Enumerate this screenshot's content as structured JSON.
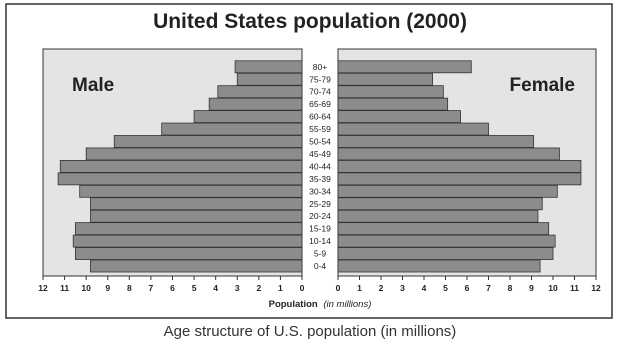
{
  "caption": "Age structure of U.S. population (in millions)",
  "colors": {
    "panel_bg": "#e4e4e4",
    "bar_fill": "#8c8c8c",
    "bar_stroke": "#333333",
    "frame": "#333333"
  },
  "chart_data": {
    "type": "bar",
    "orientation": "horizontal",
    "layout": "population-pyramid",
    "title": "United States population (2000)",
    "side_labels": {
      "left": "Male",
      "right": "Female"
    },
    "xlabel_main": "Population",
    "xlabel_unit": "(in millions)",
    "xlim": [
      0,
      12
    ],
    "xticks": [
      12,
      11,
      10,
      9,
      8,
      7,
      6,
      5,
      4,
      3,
      2,
      1,
      0
    ],
    "xticks_right": [
      0,
      1,
      2,
      3,
      4,
      5,
      6,
      7,
      8,
      9,
      10,
      11,
      12
    ],
    "grid": false,
    "categories": [
      "0-4",
      "5-9",
      "10-14",
      "15-19",
      "20-24",
      "25-29",
      "30-34",
      "35-39",
      "40-44",
      "45-49",
      "50-54",
      "55-59",
      "60-64",
      "65-69",
      "70-74",
      "75-79",
      "80+"
    ],
    "series": [
      {
        "name": "Male",
        "values": [
          9.8,
          10.5,
          10.6,
          10.5,
          9.8,
          9.8,
          10.3,
          11.3,
          11.2,
          10.0,
          8.7,
          6.5,
          5.0,
          4.3,
          3.9,
          3.0,
          3.1
        ]
      },
      {
        "name": "Female",
        "values": [
          9.4,
          10.0,
          10.1,
          9.8,
          9.3,
          9.5,
          10.2,
          11.3,
          11.3,
          10.3,
          9.1,
          7.0,
          5.7,
          5.1,
          4.9,
          4.4,
          6.2
        ]
      }
    ]
  }
}
